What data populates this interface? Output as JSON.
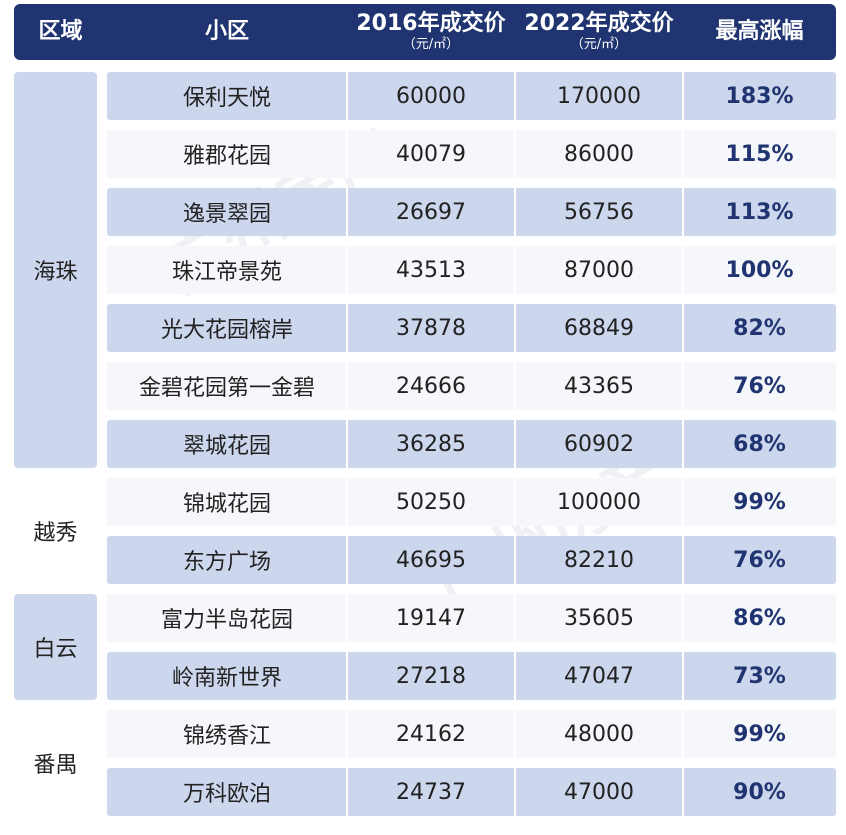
{
  "header": {
    "region": "区域",
    "community": "小区",
    "price_2016": "2016年成交价",
    "price_2016_unit": "（元/㎡）",
    "price_2022": "2022年成交价",
    "price_2022_unit": "（元/㎡）",
    "max_increase": "最高涨幅"
  },
  "regions": [
    "海珠",
    "越秀",
    "白云",
    "番禺"
  ],
  "rows": [
    {
      "name": "保利天悦",
      "p2016": "60000",
      "p2022": "170000",
      "pct": "183%"
    },
    {
      "name": "雅郡花园",
      "p2016": "40079",
      "p2022": "86000",
      "pct": "115%"
    },
    {
      "name": "逸景翠园",
      "p2016": "26697",
      "p2022": "56756",
      "pct": "113%"
    },
    {
      "name": "珠江帝景苑",
      "p2016": "43513",
      "p2022": "87000",
      "pct": "100%"
    },
    {
      "name": "光大花园榕岸",
      "p2016": "37878",
      "p2022": "68849",
      "pct": "82%"
    },
    {
      "name": "金碧花园第一金碧",
      "p2016": "24666",
      "p2022": "43365",
      "pct": "76%"
    },
    {
      "name": "翠城花园",
      "p2016": "36285",
      "p2022": "60902",
      "pct": "68%"
    },
    {
      "name": "锦城花园",
      "p2016": "50250",
      "p2022": "100000",
      "pct": "99%"
    },
    {
      "name": "东方广场",
      "p2016": "46695",
      "p2022": "82210",
      "pct": "76%"
    },
    {
      "name": "富力半岛花园",
      "p2016": "19147",
      "p2022": "35605",
      "pct": "86%"
    },
    {
      "name": "岭南新世界",
      "p2016": "27218",
      "p2022": "47047",
      "pct": "73%"
    },
    {
      "name": "锦绣香江",
      "p2016": "24162",
      "p2022": "48000",
      "pct": "99%"
    },
    {
      "name": "万科欧泊",
      "p2016": "24737",
      "p2022": "47000",
      "pct": "90%"
    }
  ],
  "watermark": "广州房产",
  "colors": {
    "header_bg": "#1f3470",
    "row_shade": "#ccd6ec",
    "row_plain": "#f6f7fa",
    "pct_text": "#1f3470"
  }
}
